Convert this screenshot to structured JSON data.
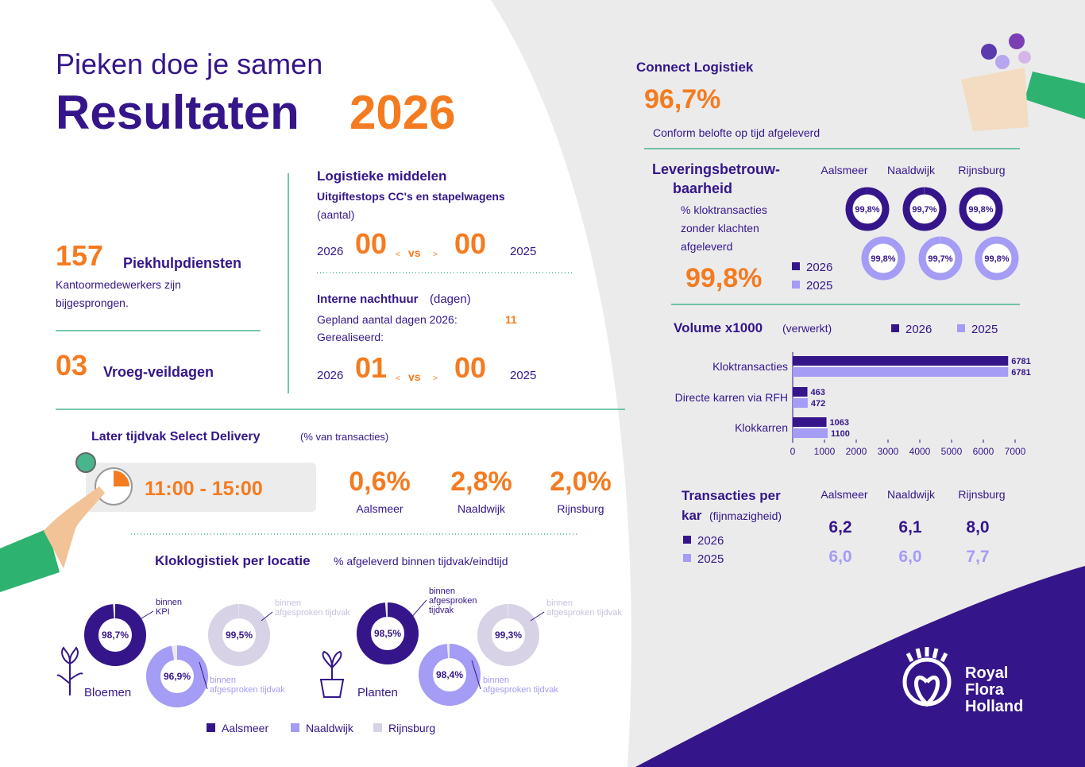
{
  "header": {
    "subtitle": "Pieken doe je samen",
    "title": "Resultaten",
    "year": "2026"
  },
  "piekhulp": {
    "value": "157",
    "label": "Piekhulpdiensten",
    "text": [
      "Kantoormedewerkers zijn",
      "bijgesprongen."
    ]
  },
  "vroeg": {
    "value": "03",
    "label": "Vroeg-veildagen"
  },
  "logistiek": {
    "title": "Logistieke middelen",
    "subtitle": "Uitgiftestops CC's en stapelwagens",
    "unit": "(aantal)",
    "compare": {
      "year_a": "2026",
      "value_a": "00",
      "lt": "<",
      "vs": "vs",
      "gt": ">",
      "value_b": "00",
      "year_b": "2025"
    }
  },
  "nachthuur": {
    "title": "Interne nachthuur",
    "unit": "(dagen)",
    "planned_label": "Gepland aantal dagen 2026:",
    "planned_value": "11",
    "realised_label": "Gerealiseerd:",
    "compare": {
      "year_a": "2026",
      "value_a": "01",
      "lt": "<",
      "vs": "vs",
      "gt": ">",
      "value_b": "00",
      "year_b": "2025"
    }
  },
  "select": {
    "title": "Later tijdvak Select Delivery",
    "unit": "(% van transacties)",
    "time": "11:00 - 15:00",
    "items": [
      {
        "value": "0,6%",
        "label": "Aalsmeer"
      },
      {
        "value": "2,8%",
        "label": "Naaldwijk"
      },
      {
        "value": "2,0%",
        "label": "Rijnsburg"
      }
    ]
  },
  "kloklogistiek": {
    "title": "Kloklogistiek per locatie",
    "subtitle": "% afgeleverd binnen tijdvak/eindtijd",
    "legend": [
      {
        "name": "Aalsmeer",
        "color": "#35168a"
      },
      {
        "name": "Naaldwijk",
        "color": "#a49cf5"
      },
      {
        "name": "Rijnsburg",
        "color": "#d8d2e6"
      }
    ],
    "groups": [
      {
        "name": "Bloemen",
        "donuts": [
          {
            "value": 98.7,
            "label": "98,7%",
            "note": [
              "binnen",
              "KPI"
            ]
          },
          {
            "value": 96.9,
            "label": "96,9%",
            "note": [
              "binnen",
              "afgesproken  tijdvak"
            ]
          },
          {
            "value": 99.5,
            "label": "99,5%",
            "note": [
              "binnen",
              "afgesproken  tijdvak"
            ]
          }
        ]
      },
      {
        "name": "Planten",
        "donuts": [
          {
            "value": 98.5,
            "label": "98,5%",
            "note": [
              "binnen",
              "afgesproken",
              "tijdvak"
            ]
          },
          {
            "value": 98.4,
            "label": "98,4%",
            "note": [
              "binnen",
              "afgesproken  tijdvak"
            ]
          },
          {
            "value": 99.3,
            "label": "99,3%",
            "note": [
              "binnen",
              "afgesproken  tijdvak"
            ]
          }
        ]
      }
    ]
  },
  "connect": {
    "title": "Connect Logistiek",
    "value": "96,7%",
    "text": "Conform belofte op tijd afgeleverd"
  },
  "levering": {
    "title": [
      "Leveringsbetrouw-",
      "baarheid"
    ],
    "text": [
      "% kloktransacties",
      "zonder klachten",
      "afgeleverd"
    ],
    "value": "99,8%",
    "locations": [
      "Aalsmeer",
      "Naaldwijk",
      "Rijnsburg"
    ],
    "series": [
      {
        "name": "2026",
        "color": "#35168a",
        "values": [
          99.8,
          99.7,
          99.8
        ],
        "value_labels": [
          "99,8%",
          "99,7%",
          "99,8%"
        ]
      },
      {
        "name": "2025",
        "color": "#a49cf5",
        "values": [
          99.8,
          99.7,
          99.8
        ],
        "value_labels": [
          "99,8%",
          "99,7%",
          "99,8%"
        ]
      }
    ]
  },
  "chart_data": {
    "type": "hbar",
    "title": "Volume x1000",
    "subtitle": "(verwerkt)",
    "categories": [
      "Kloktransacties",
      "Directe karren via RFH",
      "Klokkarren"
    ],
    "series": [
      {
        "name": "2026",
        "color": "#35168a",
        "values": [
          6781,
          463,
          1063
        ]
      },
      {
        "name": "2025",
        "color": "#a49cf5",
        "values": [
          6781,
          472,
          1100
        ]
      }
    ],
    "xlim": [
      0,
      7000
    ],
    "xticks": [
      0,
      1000,
      2000,
      3000,
      4000,
      5000,
      6000,
      7000
    ]
  },
  "transacties": {
    "title": [
      "Transacties per",
      "kar"
    ],
    "unit": "(fijnmazigheid)",
    "locations": [
      "Aalsmeer",
      "Naaldwijk",
      "Rijnsburg"
    ],
    "series": [
      {
        "name": "2026",
        "color": "#35168a",
        "values": [
          "6,2",
          "6,1",
          "8,0"
        ]
      },
      {
        "name": "2025",
        "color": "#a49cf5",
        "values": [
          "6,0",
          "6,0",
          "7,7"
        ]
      }
    ]
  },
  "logo": [
    "Royal",
    "Flora",
    "Holland"
  ]
}
